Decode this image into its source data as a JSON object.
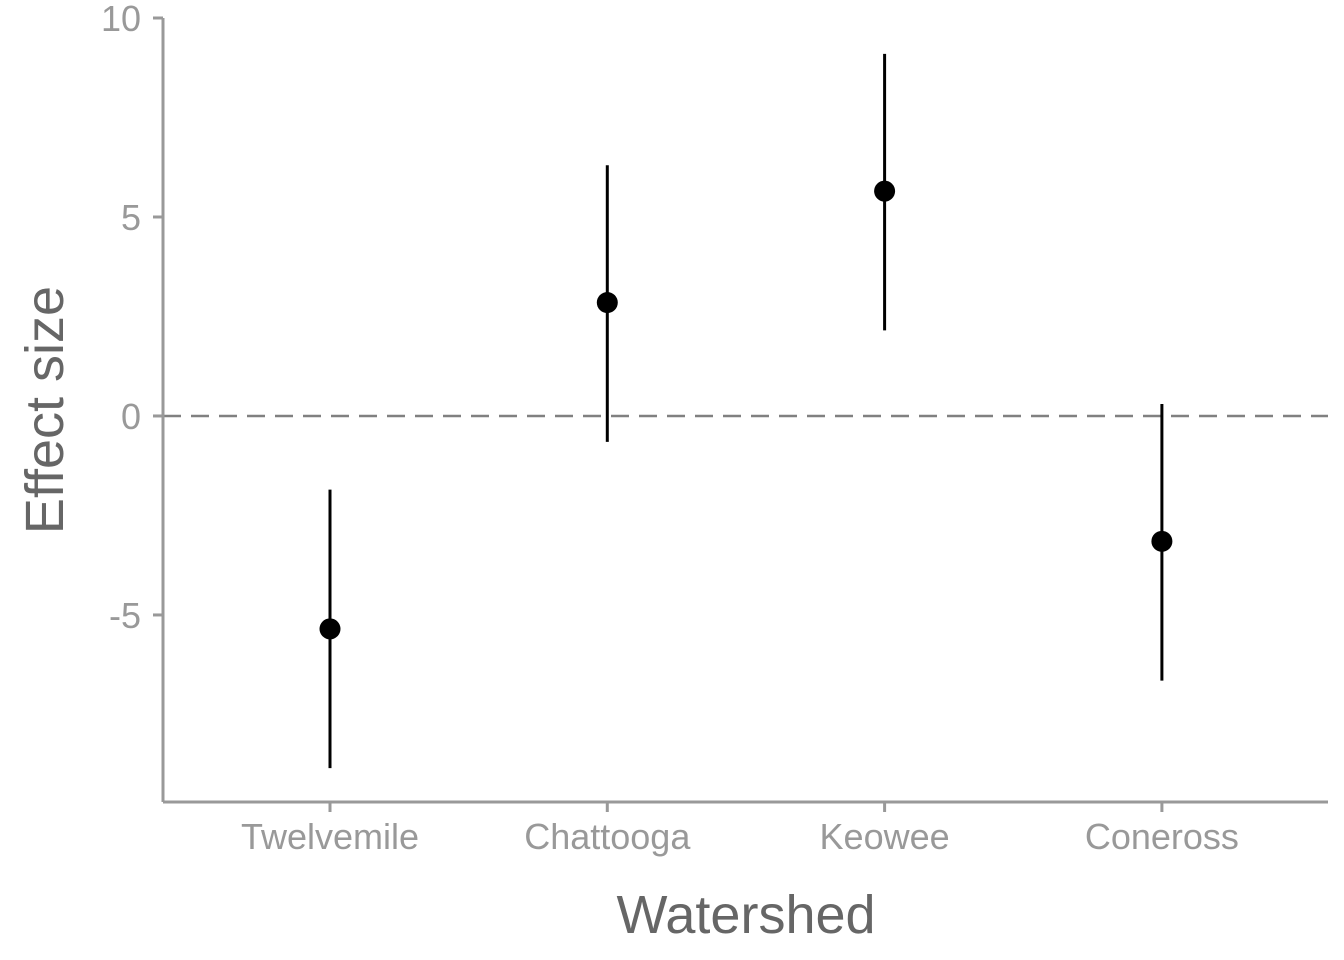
{
  "chart_data": {
    "type": "scatter",
    "subtype": "point-range",
    "title": "",
    "xlabel": "Watershed",
    "ylabel": "Effect size",
    "categories": [
      "Twelvemile",
      "Chattooga",
      "Keowee",
      "Coneross"
    ],
    "series": [
      {
        "values": [
          -5.35,
          2.85,
          5.65,
          -3.15
        ],
        "lower": [
          -8.85,
          -0.65,
          2.15,
          -6.65
        ],
        "upper": [
          -1.85,
          6.3,
          9.1,
          0.3
        ]
      }
    ],
    "ylim": [
      -9.7,
      10
    ],
    "yticks": [
      10,
      5,
      0,
      -5
    ],
    "ytick_labels": [
      "10",
      "5",
      "0",
      "-5"
    ],
    "reference_line": {
      "y": 0,
      "style": "dashed"
    },
    "grid": false,
    "legend": "none",
    "colors": {
      "point": "#000000",
      "interval": "#000000",
      "axis": "#999999",
      "reference": "#808080"
    }
  }
}
